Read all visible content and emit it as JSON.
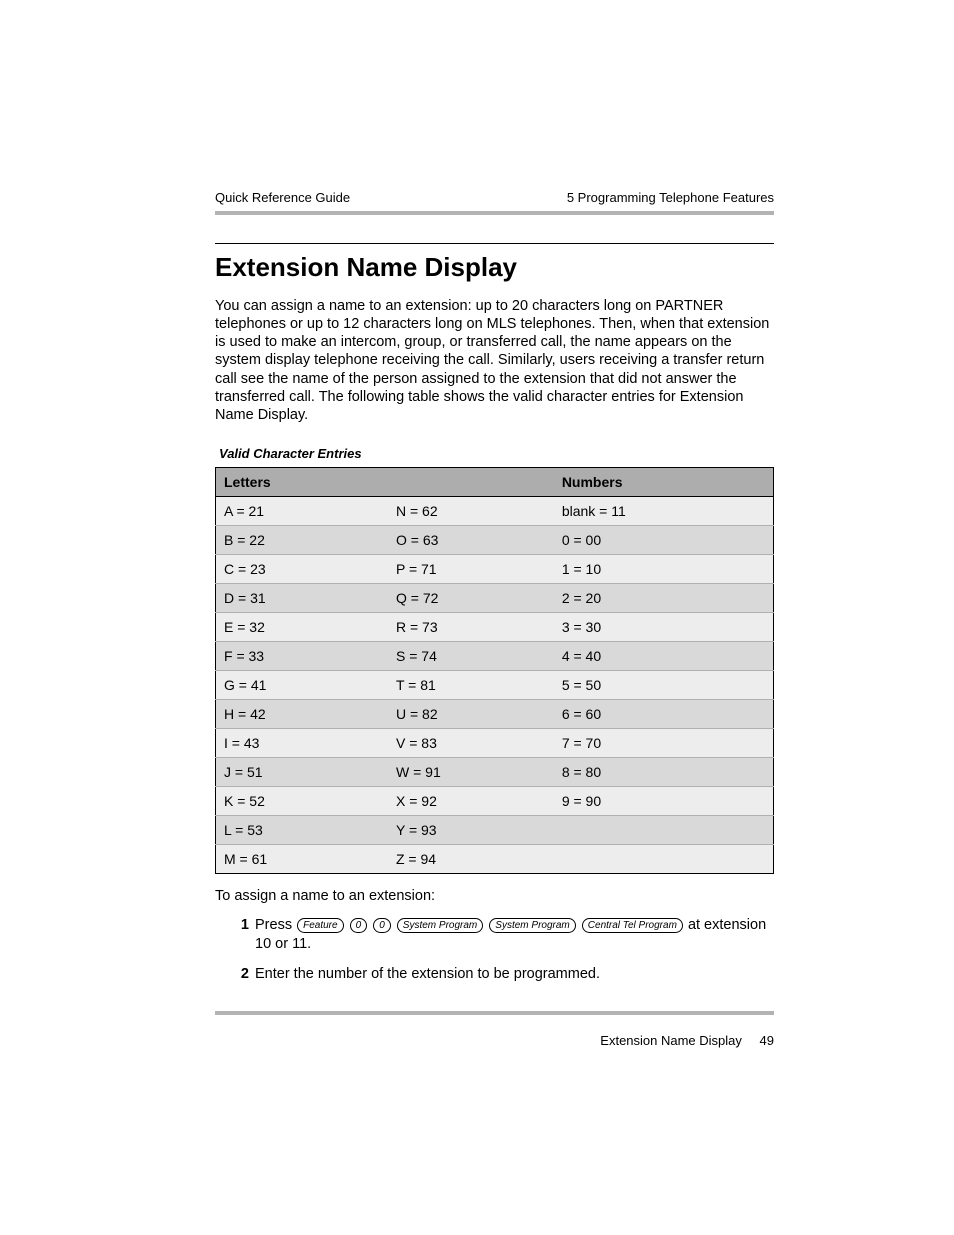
{
  "header": {
    "left": "Quick Reference Guide",
    "right": "5 Programming Telephone Features"
  },
  "title": "Extension Name Display",
  "intro": "You can assign a name to an extension: up to 20 characters long on PARTNER telephones or up to 12 characters long on MLS telephones. Then, when that extension is used to make an intercom, group, or transferred call, the name appears on the system display telephone receiving the call. Similarly, users receiving a transfer return call see the name of the person assigned to the extension that did not answer the transferred call. The following table shows the valid character entries for Extension Name Display.",
  "table": {
    "caption": "Valid Character Entries",
    "headers": {
      "col1": "Letters",
      "col2": "",
      "col3": "Numbers"
    },
    "row_bg_odd": "#ededed",
    "row_bg_even": "#d9d9d9",
    "header_bg": "#adadad",
    "rows": [
      {
        "c1": "A = 21",
        "c2": "N = 62",
        "c3": "blank = 11"
      },
      {
        "c1": "B = 22",
        "c2": "O = 63",
        "c3": "0 = 00"
      },
      {
        "c1": "C = 23",
        "c2": "P = 71",
        "c3": "1 = 10"
      },
      {
        "c1": "D = 31",
        "c2": "Q = 72",
        "c3": "2 = 20"
      },
      {
        "c1": "E = 32",
        "c2": "R = 73",
        "c3": "3 = 30"
      },
      {
        "c1": "F = 33",
        "c2": "S = 74",
        "c3": "4 = 40"
      },
      {
        "c1": "G = 41",
        "c2": "T = 81",
        "c3": "5 = 50"
      },
      {
        "c1": "H = 42",
        "c2": "U = 82",
        "c3": "6 = 60"
      },
      {
        "c1": "I = 43",
        "c2": "V = 83",
        "c3": "7 = 70"
      },
      {
        "c1": "J = 51",
        "c2": "W = 91",
        "c3": "8 = 80"
      },
      {
        "c1": "K = 52",
        "c2": "X = 92",
        "c3": "9 = 90"
      },
      {
        "c1": "L = 53",
        "c2": "Y = 93",
        "c3": ""
      },
      {
        "c1": "M = 61",
        "c2": "Z = 94",
        "c3": ""
      }
    ]
  },
  "after_table": "To assign a name to an extension:",
  "steps": {
    "s1": {
      "num": "1",
      "pre": "Press ",
      "keys": [
        "Feature",
        "0",
        "0",
        "System Program",
        "System Program",
        "Central Tel Program"
      ],
      "post": " at extension 10 or 11."
    },
    "s2": {
      "num": "2",
      "text": "Enter the number of the extension to be programmed."
    }
  },
  "footer": {
    "label": "Extension Name Display",
    "page": "49"
  }
}
